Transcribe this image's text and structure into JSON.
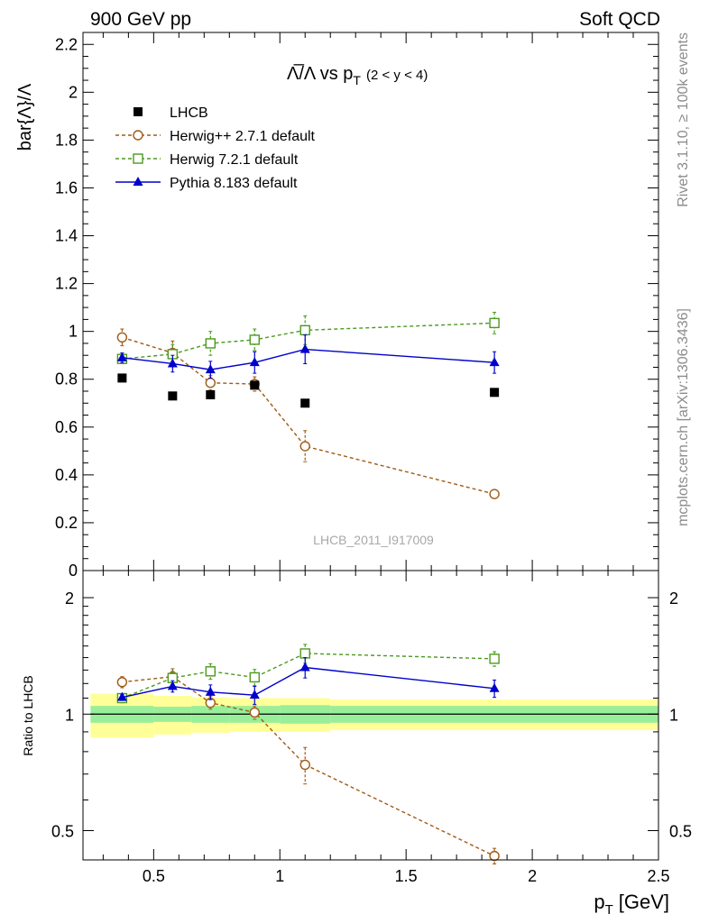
{
  "header": {
    "left": "900 GeV pp",
    "right": "Soft QCD"
  },
  "side_labels": {
    "top": "Rivet 3.1.10, ≥ 100k events",
    "bottom": "mcplots.cern.ch [arXiv:1306.3436]"
  },
  "chart_data": {
    "type": "line",
    "title_main": "Λ̅/Λ vs p",
    "title_sub": "T",
    "title_range": "(2 < y < 4)",
    "watermark": "LHCB_2011_I917009",
    "xlabel": "p",
    "xlabel_sub": "T",
    "xlabel_unit": "[GeV]",
    "ylabel": "bar{Λ}/Λ",
    "ratio_ylabel": "Ratio to LHCB",
    "xlim": [
      0.22,
      2.5
    ],
    "ylim": [
      0,
      2.25
    ],
    "ratio_ylim": [
      0.42,
      2.35
    ],
    "x_ticks": [
      {
        "value": 0.5,
        "label": "0.5"
      },
      {
        "value": 1.0,
        "label": "1"
      },
      {
        "value": 1.5,
        "label": "1.5"
      },
      {
        "value": 2.0,
        "label": "2"
      },
      {
        "value": 2.5,
        "label": "2.5"
      }
    ],
    "y_ticks": [
      {
        "value": 0,
        "label": "0"
      },
      {
        "value": 0.2,
        "label": "0.2"
      },
      {
        "value": 0.4,
        "label": "0.4"
      },
      {
        "value": 0.6,
        "label": "0.6"
      },
      {
        "value": 0.8,
        "label": "0.8"
      },
      {
        "value": 1.0,
        "label": "1"
      },
      {
        "value": 1.2,
        "label": "1.2"
      },
      {
        "value": 1.4,
        "label": "1.4"
      },
      {
        "value": 1.6,
        "label": "1.6"
      },
      {
        "value": 1.8,
        "label": "1.8"
      },
      {
        "value": 2.0,
        "label": "2"
      },
      {
        "value": 2.2,
        "label": "2.2"
      }
    ],
    "ratio_ticks": [
      {
        "value": 0.5,
        "label": "0.5"
      },
      {
        "value": 1.0,
        "label": "1"
      },
      {
        "value": 2.0,
        "label": "2"
      }
    ],
    "x": [
      0.375,
      0.575,
      0.725,
      0.9,
      1.1,
      1.85
    ],
    "x_edges": [
      0.25,
      0.5,
      0.65,
      0.8,
      1.0,
      1.2,
      2.5
    ],
    "band_inner": [
      0.05,
      0.045,
      0.05,
      0.05,
      0.055,
      0.05
    ],
    "band_outer": [
      0.13,
      0.115,
      0.105,
      0.1,
      0.1,
      0.09
    ],
    "series": [
      {
        "name": "LHCB",
        "marker": "square-filled",
        "color": "#000000",
        "dashed": false,
        "connect": false,
        "values": [
          0.805,
          0.73,
          0.735,
          0.775,
          0.7,
          0.745
        ],
        "errors": [
          0.0,
          0.0,
          0.0,
          0.0,
          0.0,
          0.0
        ],
        "ratio": [
          1.0,
          1.0,
          1.0,
          1.0,
          1.0,
          1.0
        ],
        "ratio_errors": [
          0,
          0,
          0,
          0,
          0,
          0
        ]
      },
      {
        "name": "Herwig++ 2.7.1 default",
        "marker": "circle-open",
        "color": "#A05A14",
        "dashed": true,
        "connect": true,
        "values": [
          0.975,
          0.91,
          0.785,
          0.78,
          0.52,
          0.32
        ],
        "errors": [
          0.035,
          0.05,
          0.03,
          0.03,
          0.065,
          0.015
        ],
        "ratio": [
          1.21,
          1.25,
          1.07,
          1.01,
          0.74,
          0.43
        ],
        "ratio_errors": [
          0.04,
          0.06,
          0.04,
          0.04,
          0.08,
          0.02
        ]
      },
      {
        "name": "Herwig 7.2.1 default",
        "marker": "square-open",
        "color": "#4C9A1E",
        "dashed": true,
        "connect": true,
        "values": [
          0.885,
          0.905,
          0.95,
          0.965,
          1.005,
          1.035
        ],
        "errors": [
          0.02,
          0.04,
          0.05,
          0.045,
          0.06,
          0.045
        ],
        "ratio": [
          1.1,
          1.24,
          1.29,
          1.245,
          1.435,
          1.39
        ],
        "ratio_errors": [
          0.03,
          0.05,
          0.06,
          0.06,
          0.08,
          0.06
        ]
      },
      {
        "name": "Pythia 8.183 default",
        "marker": "triangle-filled",
        "color": "#0000CC",
        "dashed": false,
        "connect": true,
        "values": [
          0.89,
          0.865,
          0.84,
          0.87,
          0.925,
          0.87
        ],
        "errors": [
          0.02,
          0.035,
          0.035,
          0.045,
          0.06,
          0.045
        ],
        "ratio": [
          1.105,
          1.18,
          1.14,
          1.12,
          1.32,
          1.165
        ],
        "ratio_errors": [
          0.02,
          0.04,
          0.05,
          0.06,
          0.08,
          0.06
        ]
      }
    ]
  }
}
